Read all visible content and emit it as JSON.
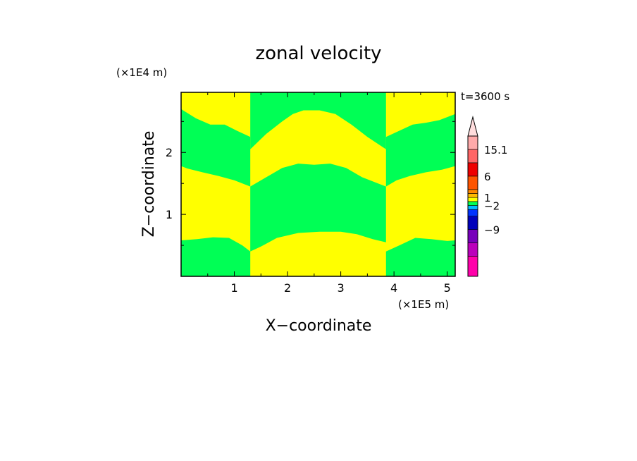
{
  "chart_data": {
    "type": "heatmap",
    "title": "zonal velocity",
    "xlabel": "X−coordinate",
    "ylabel": "Z−coordinate",
    "x_unit": "(×1E5 m)",
    "y_unit": "(×1E4 m)",
    "time_label": "t=3600 s",
    "xlim": [
      0,
      5.15
    ],
    "ylim": [
      0,
      2.97
    ],
    "x_ticks": [
      "1",
      "2",
      "3",
      "4",
      "5"
    ],
    "y_ticks": [
      "1",
      "2"
    ],
    "x_tick_values": [
      1,
      2,
      3,
      4,
      5
    ],
    "y_tick_values": [
      1,
      2
    ],
    "background_color": "#ffff00",
    "secondary_color": "#00ff55",
    "green_regions": [
      {
        "name": "left-top",
        "x": [
          0,
          0.28,
          0.55,
          0.82,
          1.05,
          1.3,
          1.3,
          1.0,
          0.7,
          0.4,
          0.12,
          0
        ],
        "y": [
          2.7,
          2.55,
          2.45,
          2.45,
          2.35,
          2.25,
          1.45,
          1.55,
          1.62,
          1.68,
          1.74,
          1.78
        ]
      },
      {
        "name": "left-bottom",
        "x": [
          0,
          0.3,
          0.6,
          0.9,
          1.15,
          1.3,
          1.3,
          0,
          0
        ],
        "y": [
          0.58,
          0.6,
          0.63,
          0.62,
          0.5,
          0.4,
          0,
          0,
          0.58
        ]
      },
      {
        "name": "center-top",
        "x": [
          1.3,
          1.3,
          1.6,
          1.9,
          2.1,
          2.3,
          2.6,
          2.9,
          3.2,
          3.5,
          3.85,
          3.85
        ],
        "y": [
          2.97,
          2.05,
          2.3,
          2.5,
          2.62,
          2.68,
          2.68,
          2.62,
          2.45,
          2.25,
          2.05,
          2.97
        ]
      },
      {
        "name": "center-middle",
        "x": [
          1.3,
          1.6,
          1.9,
          2.2,
          2.5,
          2.8,
          3.1,
          3.4,
          3.7,
          3.85,
          3.85,
          3.6,
          3.3,
          3.0,
          2.6,
          2.2,
          1.8,
          1.5,
          1.3
        ],
        "y": [
          1.45,
          1.6,
          1.75,
          1.82,
          1.8,
          1.82,
          1.75,
          1.6,
          1.5,
          1.45,
          0.55,
          0.6,
          0.68,
          0.72,
          0.72,
          0.7,
          0.62,
          0.48,
          0.4
        ]
      },
      {
        "name": "right-top",
        "x": [
          3.85,
          4.1,
          4.35,
          4.6,
          4.85,
          5.15,
          5.15,
          4.9,
          4.6,
          4.3,
          4.05,
          3.85
        ],
        "y": [
          2.25,
          2.35,
          2.45,
          2.48,
          2.52,
          2.62,
          1.78,
          1.72,
          1.68,
          1.62,
          1.55,
          1.45
        ]
      },
      {
        "name": "right-bottom",
        "x": [
          3.85,
          4.1,
          4.4,
          4.7,
          5.0,
          5.15,
          5.15,
          3.85
        ],
        "y": [
          0.4,
          0.5,
          0.62,
          0.6,
          0.57,
          0.58,
          0,
          0
        ]
      }
    ],
    "colorbar": {
      "labels": [
        "15.1",
        "6",
        "1",
        "−2",
        "−9"
      ],
      "label_values": [
        15.1,
        6,
        1,
        -2,
        -9
      ],
      "bands": [
        {
          "color": "#ff00aa",
          "weight": 3
        },
        {
          "color": "#bb00bb",
          "weight": 2
        },
        {
          "color": "#7700bb",
          "weight": 2
        },
        {
          "color": "#0000bb",
          "weight": 2
        },
        {
          "color": "#0033ff",
          "weight": 1
        },
        {
          "color": "#00bbff",
          "weight": 0.6
        },
        {
          "color": "#00ff55",
          "weight": 0.6
        },
        {
          "color": "#ffff00",
          "weight": 0.6
        },
        {
          "color": "#ffbb00",
          "weight": 0.6
        },
        {
          "color": "#ff8800",
          "weight": 0.6
        },
        {
          "color": "#ff5500",
          "weight": 2
        },
        {
          "color": "#ee0000",
          "weight": 2
        },
        {
          "color": "#ff6666",
          "weight": 2
        },
        {
          "color": "#ffaaaa",
          "weight": 2
        }
      ],
      "arrow_color": "#ffdddd"
    }
  }
}
